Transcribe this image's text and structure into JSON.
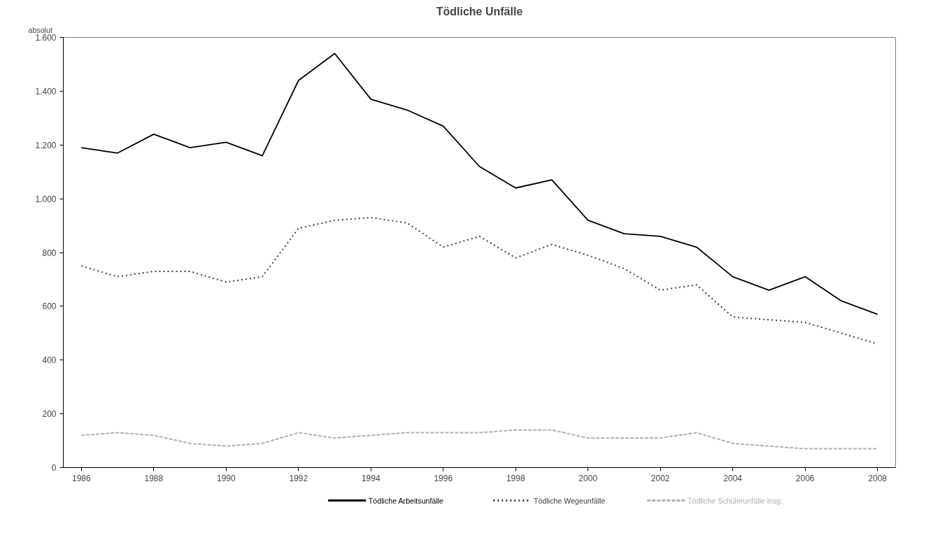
{
  "chart_data": {
    "type": "line",
    "title": "Tödliche Unfälle",
    "ylabel": "absolut",
    "x": [
      1986,
      1987,
      1988,
      1989,
      1990,
      1991,
      1992,
      1993,
      1994,
      1995,
      1996,
      1997,
      1998,
      1999,
      2000,
      2001,
      2002,
      2003,
      2004,
      2005,
      2006,
      2007,
      2008
    ],
    "xlim": [
      1985.5,
      2008.5
    ],
    "xticks": [
      1986,
      1988,
      1990,
      1992,
      1994,
      1996,
      1998,
      2000,
      2002,
      2004,
      2006,
      2008
    ],
    "ylim": [
      0,
      1600
    ],
    "yticks": [
      {
        "value": 0,
        "label": "0"
      },
      {
        "value": 200,
        "label": "200"
      },
      {
        "value": 400,
        "label": "400"
      },
      {
        "value": 600,
        "label": "600"
      },
      {
        "value": 800,
        "label": "800"
      },
      {
        "value": 1000,
        "label": "1.000"
      },
      {
        "value": 1200,
        "label": "1.200"
      },
      {
        "value": 1400,
        "label": "1.400"
      },
      {
        "value": 1600,
        "label": "1.600"
      }
    ],
    "grid": false,
    "legend": "bottom",
    "marker": "none",
    "series": [
      {
        "name": "Tödliche Arbeitsunfälle",
        "color": "#000000",
        "line_style": "solid",
        "values": [
          1190,
          1170,
          1240,
          1190,
          1210,
          1160,
          1440,
          1540,
          1370,
          1330,
          1270,
          1120,
          1040,
          1070,
          920,
          870,
          860,
          820,
          710,
          660,
          710,
          620,
          570
        ]
      },
      {
        "name": "Tödliche Wegeunfälle",
        "color": "#404040",
        "line_style": "dotted",
        "values": [
          750,
          710,
          730,
          730,
          690,
          710,
          890,
          920,
          930,
          910,
          820,
          860,
          780,
          830,
          790,
          740,
          660,
          680,
          560,
          550,
          540,
          500,
          460
        ]
      },
      {
        "name": "Tödliche Schülerunfälle insg.",
        "color": "#b0b0b0",
        "line_style": "dashed",
        "values": [
          120,
          130,
          120,
          90,
          80,
          90,
          130,
          110,
          120,
          130,
          130,
          130,
          140,
          140,
          110,
          110,
          110,
          130,
          90,
          80,
          70,
          70,
          70
        ]
      }
    ]
  }
}
